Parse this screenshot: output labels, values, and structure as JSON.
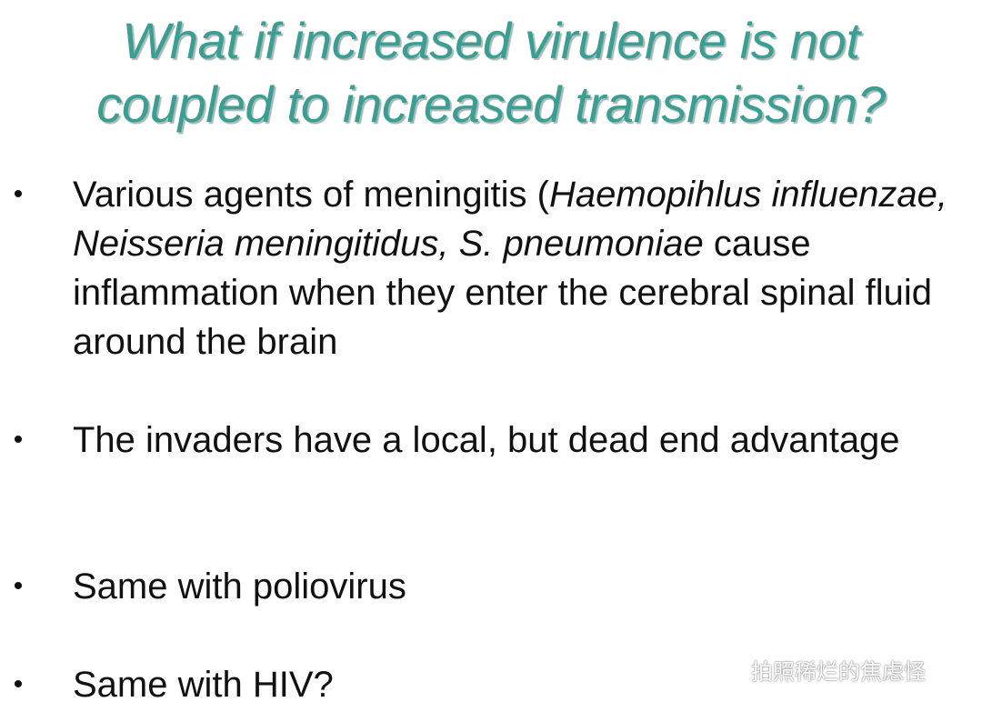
{
  "slide": {
    "title_line1": "What if increased virulence is not",
    "title_line2": "coupled to increased transmission?",
    "bullets": [
      {
        "segments": [
          "Various agents of meningitis (",
          "Haemopihlus influenzae, Neisseria meningitidus, S. pneumoniae",
          " cause inflammation when they enter the cerebral spinal fluid around the brain"
        ]
      },
      {
        "segments": [
          "The invaders have a local, but dead end advantage"
        ]
      },
      {
        "segments": [
          "Same with poliovirus"
        ]
      },
      {
        "segments": [
          "Same with HIV?"
        ]
      }
    ],
    "bullet_glyph": "•"
  },
  "watermark": {
    "icon": "wechat-icon",
    "text": "拍照稀烂的焦虑怪"
  },
  "colors": {
    "title": "#3a9e93",
    "title_shadow": "#a9b8b5",
    "body_text": "#111111",
    "background": "#ffffff"
  }
}
